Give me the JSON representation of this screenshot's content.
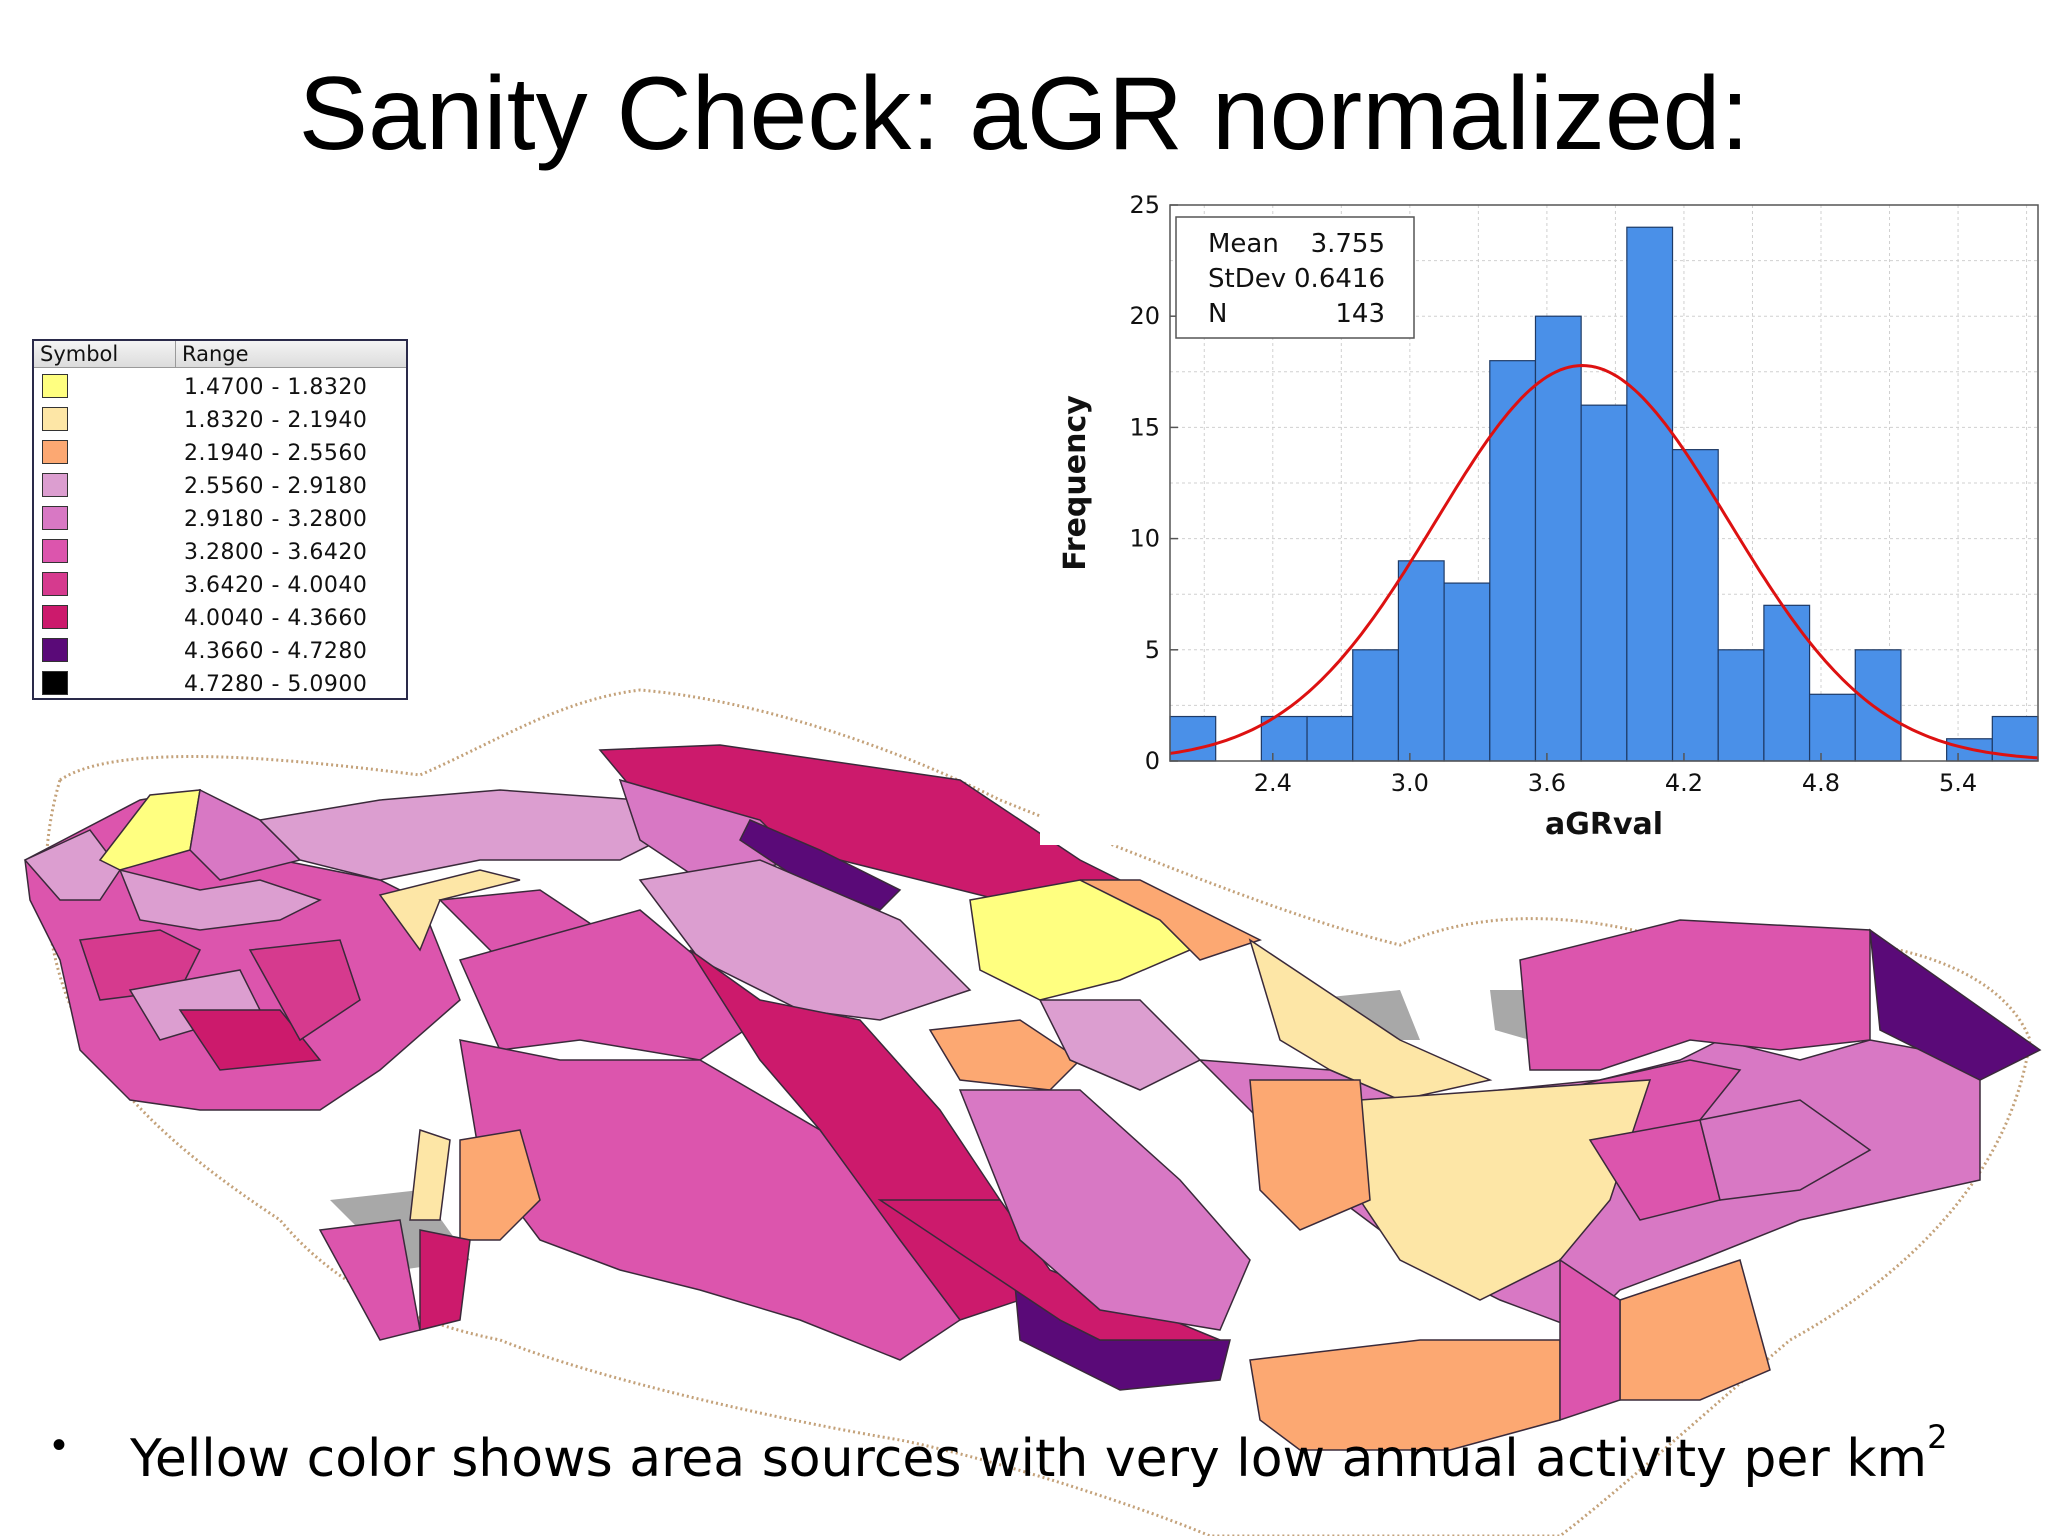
{
  "title": "Sanity Check: aGR normalized:",
  "legend": {
    "header_symbol": "Symbol",
    "header_range": "Range",
    "items": [
      {
        "color": "#ffff80",
        "range": "1.4700 - 1.8320"
      },
      {
        "color": "#fde6a6",
        "range": "1.8320 - 2.1940"
      },
      {
        "color": "#fca872",
        "range": "2.1940 - 2.5560"
      },
      {
        "color": "#dc9ed0",
        "range": "2.5560 - 2.9180"
      },
      {
        "color": "#d878c4",
        "range": "2.9180 - 3.2800"
      },
      {
        "color": "#dc55ad",
        "range": "3.2800 - 3.6420"
      },
      {
        "color": "#d63a8e",
        "range": "3.6420 - 4.0040"
      },
      {
        "color": "#cc1a6c",
        "range": "4.0040 - 4.3660"
      },
      {
        "color": "#5a0a78",
        "range": "4.3660 - 4.7280"
      },
      {
        "color": "#000000",
        "range": "4.7280 - 5.0900"
      }
    ]
  },
  "chart_data": {
    "type": "bar",
    "xlabel": "aGRval",
    "ylabel": "Frequency",
    "xlim": [
      1.95,
      5.75
    ],
    "ylim": [
      0,
      25
    ],
    "x_ticks": [
      "2.4",
      "3.0",
      "3.6",
      "4.2",
      "4.8",
      "5.4"
    ],
    "y_ticks": [
      "0",
      "5",
      "10",
      "15",
      "20",
      "25"
    ],
    "bin_width": 0.2,
    "bins": [
      {
        "x0": 1.95,
        "count": 2
      },
      {
        "x0": 2.15,
        "count": 0
      },
      {
        "x0": 2.35,
        "count": 2
      },
      {
        "x0": 2.55,
        "count": 2
      },
      {
        "x0": 2.75,
        "count": 5
      },
      {
        "x0": 2.95,
        "count": 9
      },
      {
        "x0": 3.15,
        "count": 8
      },
      {
        "x0": 3.35,
        "count": 18
      },
      {
        "x0": 3.55,
        "count": 20
      },
      {
        "x0": 3.75,
        "count": 16
      },
      {
        "x0": 3.95,
        "count": 24
      },
      {
        "x0": 4.15,
        "count": 14
      },
      {
        "x0": 4.35,
        "count": 5
      },
      {
        "x0": 4.55,
        "count": 7
      },
      {
        "x0": 4.75,
        "count": 3
      },
      {
        "x0": 4.95,
        "count": 5
      },
      {
        "x0": 5.15,
        "count": 0
      },
      {
        "x0": 5.35,
        "count": 1
      },
      {
        "x0": 5.55,
        "count": 2
      }
    ],
    "bar_color": "#4a90e8",
    "fit_curve_color": "#dd1111",
    "stats": {
      "mean_label": "Mean",
      "mean": "3.755",
      "stdev_label": "StDev",
      "stdev": "0.6416",
      "n_label": "N",
      "n": "143"
    },
    "grid": true
  },
  "bullet": {
    "text": "Yellow color shows area sources with very low annual activity per km",
    "superscript": "2"
  }
}
